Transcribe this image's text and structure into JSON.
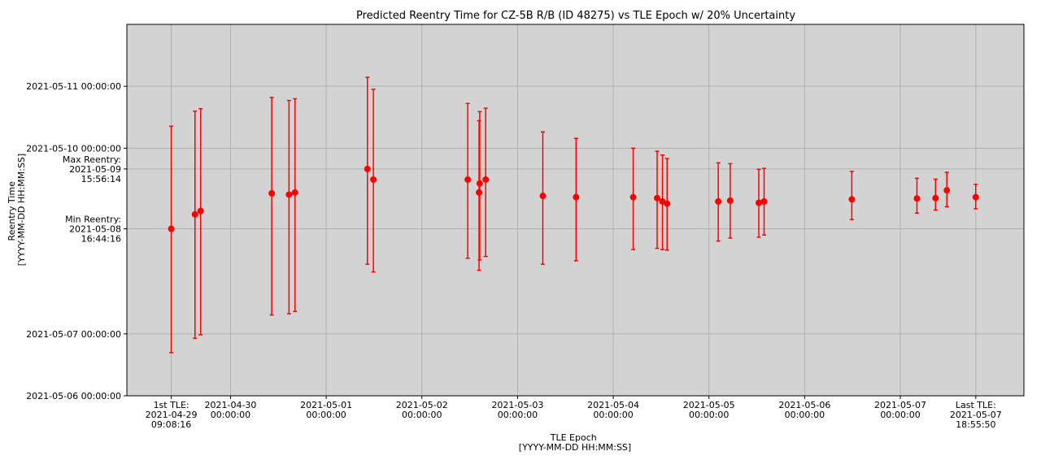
{
  "chart_data": {
    "type": "scatter",
    "title": "Predicted Reentry Time for CZ-5B R/B (ID 48275) vs TLE Epoch w/ 20% Uncertainty",
    "xlabel": [
      "TLE Epoch",
      "[YYYY-MM-DD HH:MM:SS]"
    ],
    "ylabel": [
      "Reentry Time",
      "[YYYY-MM-DD HH:MM:SS]"
    ],
    "xlim": [
      "2021-04-28 22:00:00",
      "2021-05-08 07:00:00"
    ],
    "ylim": [
      "2021-05-06 00:00:00",
      "2021-05-12 00:00:00"
    ],
    "grid": true,
    "background": "#d3d3d3",
    "marker_color": "#ff0000",
    "x_ticks": [
      {
        "value": "2021-04-29 09:08:16",
        "label": [
          "1st TLE:",
          "2021-04-29",
          "09:08:16"
        ]
      },
      {
        "value": "2021-04-30 00:00:00",
        "label": [
          "2021-04-30",
          "00:00:00"
        ]
      },
      {
        "value": "2021-05-01 00:00:00",
        "label": [
          "2021-05-01",
          "00:00:00"
        ]
      },
      {
        "value": "2021-05-02 00:00:00",
        "label": [
          "2021-05-02",
          "00:00:00"
        ]
      },
      {
        "value": "2021-05-03 00:00:00",
        "label": [
          "2021-05-03",
          "00:00:00"
        ]
      },
      {
        "value": "2021-05-04 00:00:00",
        "label": [
          "2021-05-04",
          "00:00:00"
        ]
      },
      {
        "value": "2021-05-05 00:00:00",
        "label": [
          "2021-05-05",
          "00:00:00"
        ]
      },
      {
        "value": "2021-05-06 00:00:00",
        "label": [
          "2021-05-06",
          "00:00:00"
        ]
      },
      {
        "value": "2021-05-07 00:00:00",
        "label": [
          "2021-05-07",
          "00:00:00"
        ]
      },
      {
        "value": "2021-05-07 18:55:50",
        "label": [
          "Last TLE:",
          "2021-05-07",
          "18:55:50"
        ]
      }
    ],
    "y_ticks": [
      {
        "value": "2021-05-06 00:00:00",
        "label": [
          "2021-05-06 00:00:00"
        ]
      },
      {
        "value": "2021-05-07 00:00:00",
        "label": [
          "2021-05-07 00:00:00"
        ]
      },
      {
        "value": "2021-05-08 16:44:16",
        "label": [
          "Min Reentry:",
          "2021-05-08",
          "16:44:16"
        ]
      },
      {
        "value": "2021-05-09 15:56:14",
        "label": [
          "Max Reentry:",
          "2021-05-09",
          "15:56:14"
        ]
      },
      {
        "value": "2021-05-10 00:00:00",
        "label": [
          "2021-05-10 00:00:00"
        ]
      },
      {
        "value": "2021-05-11 00:00:00",
        "label": [
          "2021-05-11 00:00:00"
        ]
      }
    ],
    "points": [
      {
        "x": "2021-04-29 09:08",
        "y": "2021-05-08 16:44",
        "ymin": "2021-05-06 16:44",
        "ymax": "2021-05-10 08:30"
      },
      {
        "x": "2021-04-29 15:05",
        "y": "2021-05-08 22:20",
        "ymin": "2021-05-06 22:20",
        "ymax": "2021-05-10 14:20"
      },
      {
        "x": "2021-04-29 16:30",
        "y": "2021-05-08 23:40",
        "ymin": "2021-05-06 23:40",
        "ymax": "2021-05-10 15:20"
      },
      {
        "x": "2021-04-30 10:20",
        "y": "2021-05-09 06:30",
        "ymin": "2021-05-07 07:20",
        "ymax": "2021-05-10 19:40"
      },
      {
        "x": "2021-04-30 14:40",
        "y": "2021-05-09 06:00",
        "ymin": "2021-05-07 07:50",
        "ymax": "2021-05-10 18:30"
      },
      {
        "x": "2021-04-30 16:10",
        "y": "2021-05-09 06:50",
        "ymin": "2021-05-07 08:40",
        "ymax": "2021-05-10 19:10"
      },
      {
        "x": "2021-05-01 10:20",
        "y": "2021-05-09 15:56",
        "ymin": "2021-05-08 03:00",
        "ymax": "2021-05-11 03:30"
      },
      {
        "x": "2021-05-01 11:50",
        "y": "2021-05-09 11:50",
        "ymin": "2021-05-08 00:00",
        "ymax": "2021-05-10 22:50"
      },
      {
        "x": "2021-05-02 11:30",
        "y": "2021-05-09 11:50",
        "ymin": "2021-05-08 05:20",
        "ymax": "2021-05-10 17:20"
      },
      {
        "x": "2021-05-02 14:20",
        "y": "2021-05-09 06:50",
        "ymin": "2021-05-08 00:40",
        "ymax": "2021-05-10 10:40"
      },
      {
        "x": "2021-05-02 14:30",
        "y": "2021-05-09 10:20",
        "ymin": "2021-05-08 04:40",
        "ymax": "2021-05-10 14:10"
      },
      {
        "x": "2021-05-02 16:00",
        "y": "2021-05-09 11:50",
        "ymin": "2021-05-08 06:00",
        "ymax": "2021-05-10 15:30"
      },
      {
        "x": "2021-05-03 06:20",
        "y": "2021-05-09 05:30",
        "ymin": "2021-05-08 03:00",
        "ymax": "2021-05-10 06:20"
      },
      {
        "x": "2021-05-03 14:40",
        "y": "2021-05-09 05:00",
        "ymin": "2021-05-08 04:20",
        "ymax": "2021-05-10 03:50"
      },
      {
        "x": "2021-05-04 05:00",
        "y": "2021-05-09 05:00",
        "ymin": "2021-05-08 08:40",
        "ymax": "2021-05-10 00:00"
      },
      {
        "x": "2021-05-04 11:00",
        "y": "2021-05-09 04:40",
        "ymin": "2021-05-08 09:10",
        "ymax": "2021-05-09 22:50"
      },
      {
        "x": "2021-05-04 12:20",
        "y": "2021-05-09 03:20",
        "ymin": "2021-05-08 08:40",
        "ymax": "2021-05-09 21:20"
      },
      {
        "x": "2021-05-04 13:30",
        "y": "2021-05-09 02:30",
        "ymin": "2021-05-08 08:30",
        "ymax": "2021-05-09 20:00"
      },
      {
        "x": "2021-05-05 02:20",
        "y": "2021-05-09 03:20",
        "ymin": "2021-05-08 12:00",
        "ymax": "2021-05-09 18:20"
      },
      {
        "x": "2021-05-05 05:20",
        "y": "2021-05-09 03:40",
        "ymin": "2021-05-08 13:10",
        "ymax": "2021-05-09 18:00"
      },
      {
        "x": "2021-05-05 12:30",
        "y": "2021-05-09 02:50",
        "ymin": "2021-05-08 13:30",
        "ymax": "2021-05-09 15:50"
      },
      {
        "x": "2021-05-05 13:50",
        "y": "2021-05-09 03:20",
        "ymin": "2021-05-08 14:20",
        "ymax": "2021-05-09 16:10"
      },
      {
        "x": "2021-05-06 11:50",
        "y": "2021-05-09 04:10",
        "ymin": "2021-05-08 20:20",
        "ymax": "2021-05-09 15:00"
      },
      {
        "x": "2021-05-07 04:10",
        "y": "2021-05-09 04:30",
        "ymin": "2021-05-08 22:50",
        "ymax": "2021-05-09 12:20"
      },
      {
        "x": "2021-05-07 08:50",
        "y": "2021-05-09 04:40",
        "ymin": "2021-05-09 00:00",
        "ymax": "2021-05-09 12:00"
      },
      {
        "x": "2021-05-07 11:40",
        "y": "2021-05-09 07:40",
        "ymin": "2021-05-09 01:20",
        "ymax": "2021-05-09 14:40"
      },
      {
        "x": "2021-05-07 18:55",
        "y": "2021-05-09 05:00",
        "ymin": "2021-05-09 00:30",
        "ymax": "2021-05-09 10:00"
      }
    ]
  }
}
